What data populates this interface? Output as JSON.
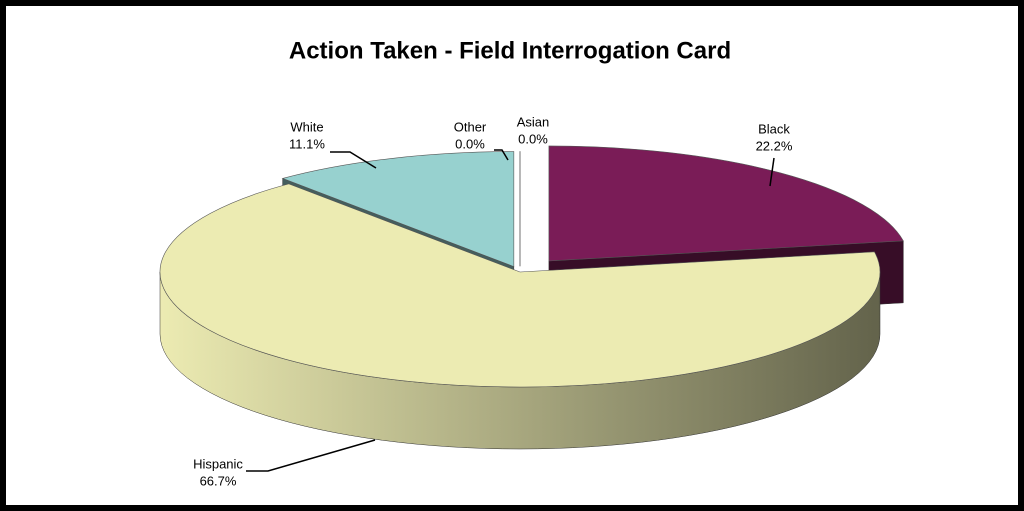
{
  "chart_data": {
    "type": "pie",
    "title": "Action Taken - Field Interrogation Card",
    "categories": [
      "Black",
      "Hispanic",
      "White",
      "Other",
      "Asian"
    ],
    "values": [
      22.2,
      66.7,
      11.1,
      0.0,
      0.0
    ],
    "value_labels": [
      "22.2%",
      "66.7%",
      "11.1%",
      "0.0%",
      "0.0%"
    ],
    "colors": [
      "#7a1c57",
      "#ecebb2",
      "#97d1cf",
      "#ffffff",
      "#ffffff"
    ]
  }
}
